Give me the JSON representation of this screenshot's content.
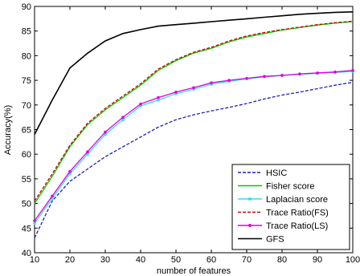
{
  "chart_data": {
    "type": "line",
    "title": "",
    "xlabel": "number of features",
    "ylabel": "Accuracy(%)",
    "xlim": [
      10,
      100
    ],
    "ylim": [
      40,
      90
    ],
    "xticks": [
      "10",
      "20",
      "30",
      "40",
      "50",
      "60",
      "70",
      "80",
      "90",
      "100"
    ],
    "yticks": [
      "40",
      "45",
      "50",
      "55",
      "60",
      "65",
      "70",
      "75",
      "80",
      "85",
      "90"
    ],
    "grid": false,
    "legend_position": "bottom-right",
    "x": [
      10,
      15,
      20,
      25,
      30,
      35,
      40,
      45,
      50,
      55,
      60,
      65,
      70,
      75,
      80,
      85,
      90,
      95,
      100
    ],
    "series": [
      {
        "name": "HSIC",
        "color": "#1f1fb4",
        "style": "dashed",
        "marker": "none",
        "values": [
          43,
          50.5,
          54.5,
          57,
          59.5,
          61.5,
          63.5,
          65.5,
          67,
          68,
          68.8,
          69.5,
          70.3,
          71.2,
          72,
          72.6,
          73.3,
          74,
          74.6
        ]
      },
      {
        "name": "Fisher score",
        "color": "#00cc00",
        "style": "solid",
        "marker": "none",
        "values": [
          50,
          55.5,
          61.5,
          66,
          69,
          71.5,
          74,
          77,
          79,
          80.5,
          81.5,
          82.8,
          83.8,
          84.5,
          85.2,
          85.7,
          86.2,
          86.6,
          86.9
        ]
      },
      {
        "name": "Laplacian score",
        "color": "#33ddee",
        "style": "solid",
        "marker": "dot",
        "values": [
          46,
          51,
          56,
          60,
          64,
          67,
          69.8,
          71,
          72.3,
          73.2,
          74.2,
          74.8,
          75.3,
          75.7,
          76,
          76.2,
          76.4,
          76.6,
          76.8
        ]
      },
      {
        "name": "Trace Ratio(FS)",
        "color": "#cc0000",
        "style": "dashed",
        "marker": "none",
        "values": [
          50.5,
          56,
          61.8,
          66.3,
          69.3,
          71.8,
          74.3,
          77.3,
          79.2,
          80.7,
          81.7,
          83,
          84,
          84.7,
          85.3,
          85.8,
          86.3,
          86.7,
          87
        ]
      },
      {
        "name": "Trace Ratio(LS)",
        "color": "#dd00dd",
        "style": "solid",
        "marker": "dot",
        "values": [
          46.5,
          51.5,
          56.5,
          60.5,
          64.5,
          67.5,
          70.2,
          71.5,
          72.6,
          73.5,
          74.5,
          75,
          75.4,
          75.8,
          76,
          76.3,
          76.5,
          76.7,
          77
        ]
      },
      {
        "name": "GFS",
        "color": "#000000",
        "style": "solid",
        "marker": "none",
        "values": [
          64,
          71,
          77.5,
          80.5,
          83,
          84.5,
          85.3,
          86,
          86.3,
          86.6,
          86.9,
          87.2,
          87.5,
          87.8,
          88.1,
          88.4,
          88.6,
          88.8,
          88.9
        ]
      }
    ]
  }
}
